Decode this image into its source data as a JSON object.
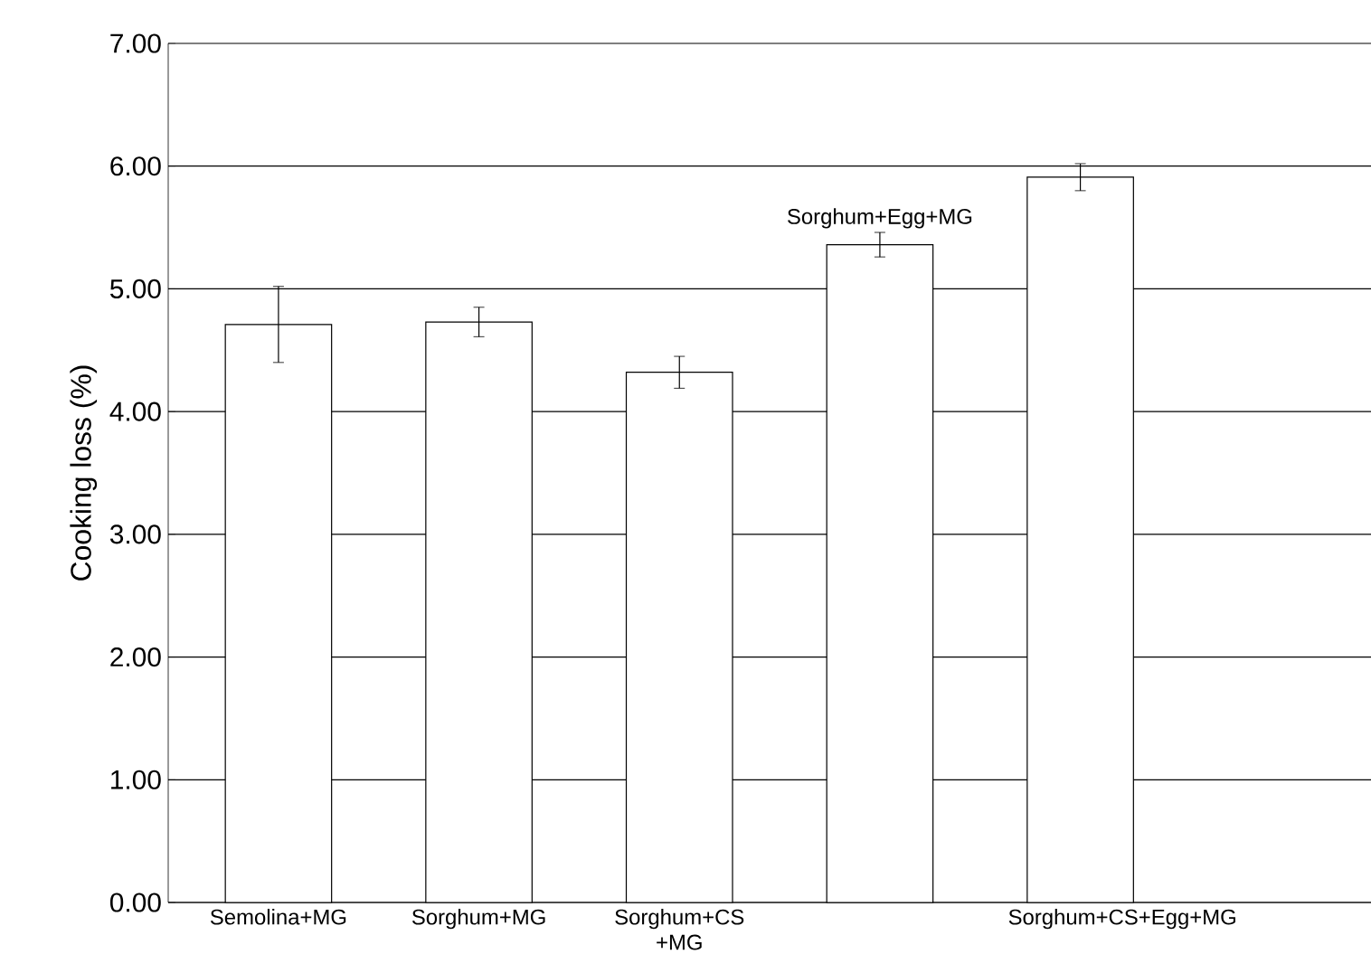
{
  "chart_data": {
    "type": "bar",
    "ylabel": "Cooking loss (%)",
    "categories": [
      "Semolina+MG",
      "Sorghum+MG",
      "Sorghum+CS +MG",
      null,
      "Sorghum+CS+Egg+MG"
    ],
    "values": [
      4.71,
      4.73,
      4.32,
      5.36,
      5.91
    ],
    "errors": [
      0.31,
      0.12,
      0.13,
      0.1,
      0.11
    ],
    "color": "#ffffff",
    "annotations": [
      "Sorghum+Egg+MG"
    ],
    "ylim": [
      0,
      7
    ],
    "yticks": [
      {
        "value": 0,
        "label": "0.00"
      },
      {
        "value": 1,
        "label": "1.00"
      },
      {
        "value": 2,
        "label": "2.00"
      },
      {
        "value": 3,
        "label": "3.00"
      },
      {
        "value": 4,
        "label": "4.00"
      },
      {
        "value": 5,
        "label": "5.00"
      },
      {
        "value": 6,
        "label": "6.00"
      },
      {
        "value": 7,
        "label": "7.00"
      }
    ],
    "grid": "y"
  }
}
